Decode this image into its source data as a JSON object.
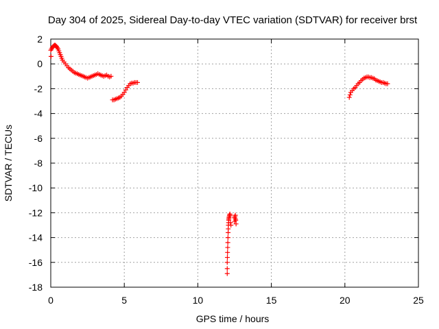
{
  "chart_data": {
    "type": "scatter",
    "title": "Day 304 of 2025, Sidereal Day-to-day VTEC variation (SDTVAR) for receiver brst",
    "xlabel": "GPS time / hours",
    "ylabel": "SDTVAR / TECUs",
    "xlim": [
      0,
      25
    ],
    "ylim": [
      -18,
      2
    ],
    "xticks": [
      0,
      5,
      10,
      15,
      20,
      25
    ],
    "yticks": [
      2,
      0,
      -2,
      -4,
      -6,
      -8,
      -10,
      -12,
      -14,
      -16,
      -18
    ],
    "grid": true,
    "marker": "plus",
    "color": "#ff0000",
    "series": [
      {
        "name": "segment-1",
        "x": [
          0.0,
          0.05,
          0.1,
          0.15,
          0.2,
          0.25,
          0.3,
          0.35,
          0.4,
          0.45,
          0.5,
          0.55,
          0.6,
          0.65,
          0.7,
          0.75,
          0.8,
          0.9,
          1.0,
          1.1,
          1.2,
          1.3,
          1.4,
          1.5,
          1.6,
          1.7,
          1.8,
          1.9,
          2.0,
          2.1,
          2.2,
          2.3,
          2.4,
          2.5,
          2.6,
          2.7,
          2.8,
          2.9,
          3.0,
          3.1,
          3.2,
          3.3,
          3.4,
          3.5,
          3.6,
          3.7,
          3.8,
          3.9,
          4.0,
          4.1,
          0.02
        ],
        "y": [
          1.1,
          1.2,
          1.3,
          1.4,
          1.45,
          1.5,
          1.5,
          1.45,
          1.4,
          1.3,
          1.2,
          1.05,
          0.9,
          0.75,
          0.6,
          0.45,
          0.3,
          0.15,
          0.0,
          -0.15,
          -0.3,
          -0.4,
          -0.5,
          -0.6,
          -0.7,
          -0.75,
          -0.8,
          -0.85,
          -0.9,
          -0.95,
          -1.0,
          -1.05,
          -1.1,
          -1.15,
          -1.1,
          -1.05,
          -1.0,
          -0.95,
          -0.9,
          -0.85,
          -0.8,
          -0.85,
          -0.9,
          -0.95,
          -1.0,
          -0.95,
          -0.9,
          -1.0,
          -1.05,
          -1.0,
          0.6
        ]
      },
      {
        "name": "segment-2",
        "x": [
          4.2,
          4.3,
          4.4,
          4.5,
          4.6,
          4.7,
          4.8,
          4.9,
          5.0,
          5.1,
          5.2,
          5.3,
          5.4,
          5.5,
          5.6,
          5.7,
          5.8,
          5.9
        ],
        "y": [
          -2.9,
          -2.9,
          -2.85,
          -2.8,
          -2.75,
          -2.7,
          -2.6,
          -2.45,
          -2.3,
          -2.1,
          -1.9,
          -1.75,
          -1.6,
          -1.55,
          -1.55,
          -1.5,
          -1.5,
          -1.5
        ]
      },
      {
        "name": "segment-3",
        "x": [
          12.0,
          12.0,
          12.0,
          12.01,
          12.02,
          12.03,
          12.04,
          12.05,
          12.06,
          12.07,
          12.08,
          12.09,
          12.1,
          12.11,
          12.12,
          12.13,
          12.15,
          12.18,
          12.2,
          12.22,
          12.25,
          12.5,
          12.52,
          12.55,
          12.58,
          12.6,
          12.5,
          12.55
        ],
        "y": [
          -16.9,
          -16.5,
          -16.0,
          -15.6,
          -15.2,
          -14.8,
          -14.4,
          -14.0,
          -13.6,
          -13.3,
          -13.0,
          -12.8,
          -12.6,
          -12.5,
          -12.4,
          -12.3,
          -12.2,
          -12.1,
          -12.2,
          -12.8,
          -13.0,
          -12.4,
          -12.3,
          -12.2,
          -12.6,
          -12.9,
          -12.7,
          -12.5
        ]
      },
      {
        "name": "segment-4",
        "x": [
          20.3,
          20.35,
          20.4,
          20.5,
          20.6,
          20.7,
          20.8,
          20.9,
          21.0,
          21.1,
          21.2,
          21.3,
          21.4,
          21.5,
          21.6,
          21.7,
          21.8,
          21.9,
          22.0,
          22.1,
          22.2,
          22.3,
          22.4,
          22.5,
          22.6,
          22.7,
          22.8,
          22.9
        ],
        "y": [
          -2.7,
          -2.5,
          -2.3,
          -2.15,
          -2.0,
          -1.9,
          -1.75,
          -1.6,
          -1.5,
          -1.35,
          -1.25,
          -1.15,
          -1.1,
          -1.05,
          -1.05,
          -1.1,
          -1.1,
          -1.15,
          -1.2,
          -1.3,
          -1.35,
          -1.4,
          -1.45,
          -1.5,
          -1.5,
          -1.55,
          -1.6,
          -1.6
        ]
      }
    ]
  }
}
